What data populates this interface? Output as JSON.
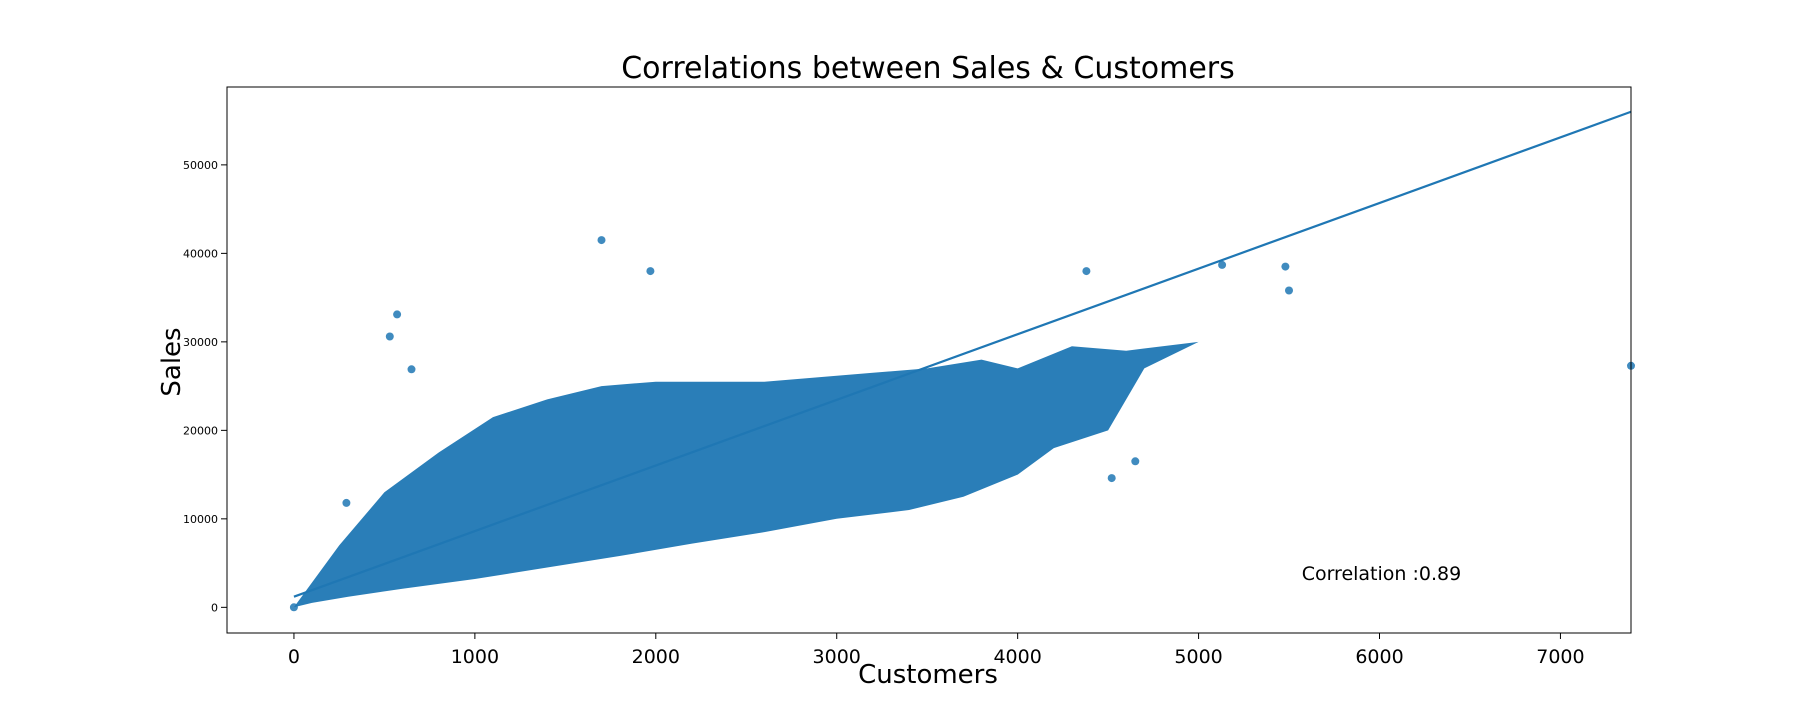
{
  "chart_data": {
    "type": "scatter",
    "title": "Correlations between Sales & Customers",
    "xlabel": "Customers",
    "ylabel": "Sales",
    "xlim": [
      -370,
      7390
    ],
    "ylim": [
      -2900,
      58800
    ],
    "x_ticks": [
      0,
      1000,
      2000,
      3000,
      4000,
      5000,
      6000,
      7000
    ],
    "y_ticks": [
      0,
      10000,
      20000,
      30000,
      40000,
      50000
    ],
    "grid": false,
    "point_color": "#1f77b4",
    "line_color": "#1f77b4",
    "regression_line": {
      "x": [
        0,
        7390
      ],
      "y": [
        1200,
        56000
      ]
    },
    "annotation": {
      "text": "Correlation :0.89",
      "x": 5570,
      "y": 3100
    },
    "sample_points": [
      {
        "x": 1700,
        "y": 41500
      },
      {
        "x": 1970,
        "y": 38000
      },
      {
        "x": 570,
        "y": 33100
      },
      {
        "x": 4380,
        "y": 38000
      },
      {
        "x": 5130,
        "y": 38700
      },
      {
        "x": 5480,
        "y": 38500
      },
      {
        "x": 5500,
        "y": 35800
      },
      {
        "x": 7390,
        "y": 27300
      },
      {
        "x": 4520,
        "y": 14600
      },
      {
        "x": 4650,
        "y": 16500
      },
      {
        "x": 0,
        "y": 0
      },
      {
        "x": 530,
        "y": 30600
      },
      {
        "x": 290,
        "y": 11800
      },
      {
        "x": 650,
        "y": 26900
      }
    ]
  }
}
